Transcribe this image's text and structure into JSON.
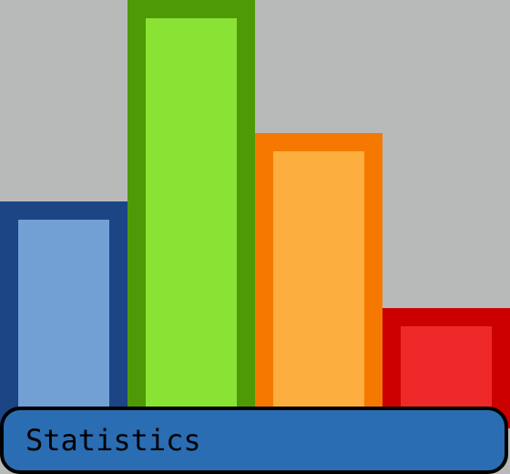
{
  "label": {
    "text": "Statistics"
  },
  "colors": {
    "background": "#b8b9b9",
    "label_fill": "#2a6db3",
    "label_border": "#000000",
    "label_text": "#000000"
  },
  "bars": [
    {
      "name": "blue",
      "relative_height": 0.53,
      "outer_color": "#1b4585",
      "inner_color": "#729fd4"
    },
    {
      "name": "green",
      "relative_height": 1.0,
      "outer_color": "#4e9a06",
      "inner_color": "#8ae234"
    },
    {
      "name": "orange",
      "relative_height": 0.69,
      "outer_color": "#f57900",
      "inner_color": "#fcaf3e"
    },
    {
      "name": "red",
      "relative_height": 0.28,
      "outer_color": "#cc0000",
      "inner_color": "#ef2929"
    }
  ]
}
